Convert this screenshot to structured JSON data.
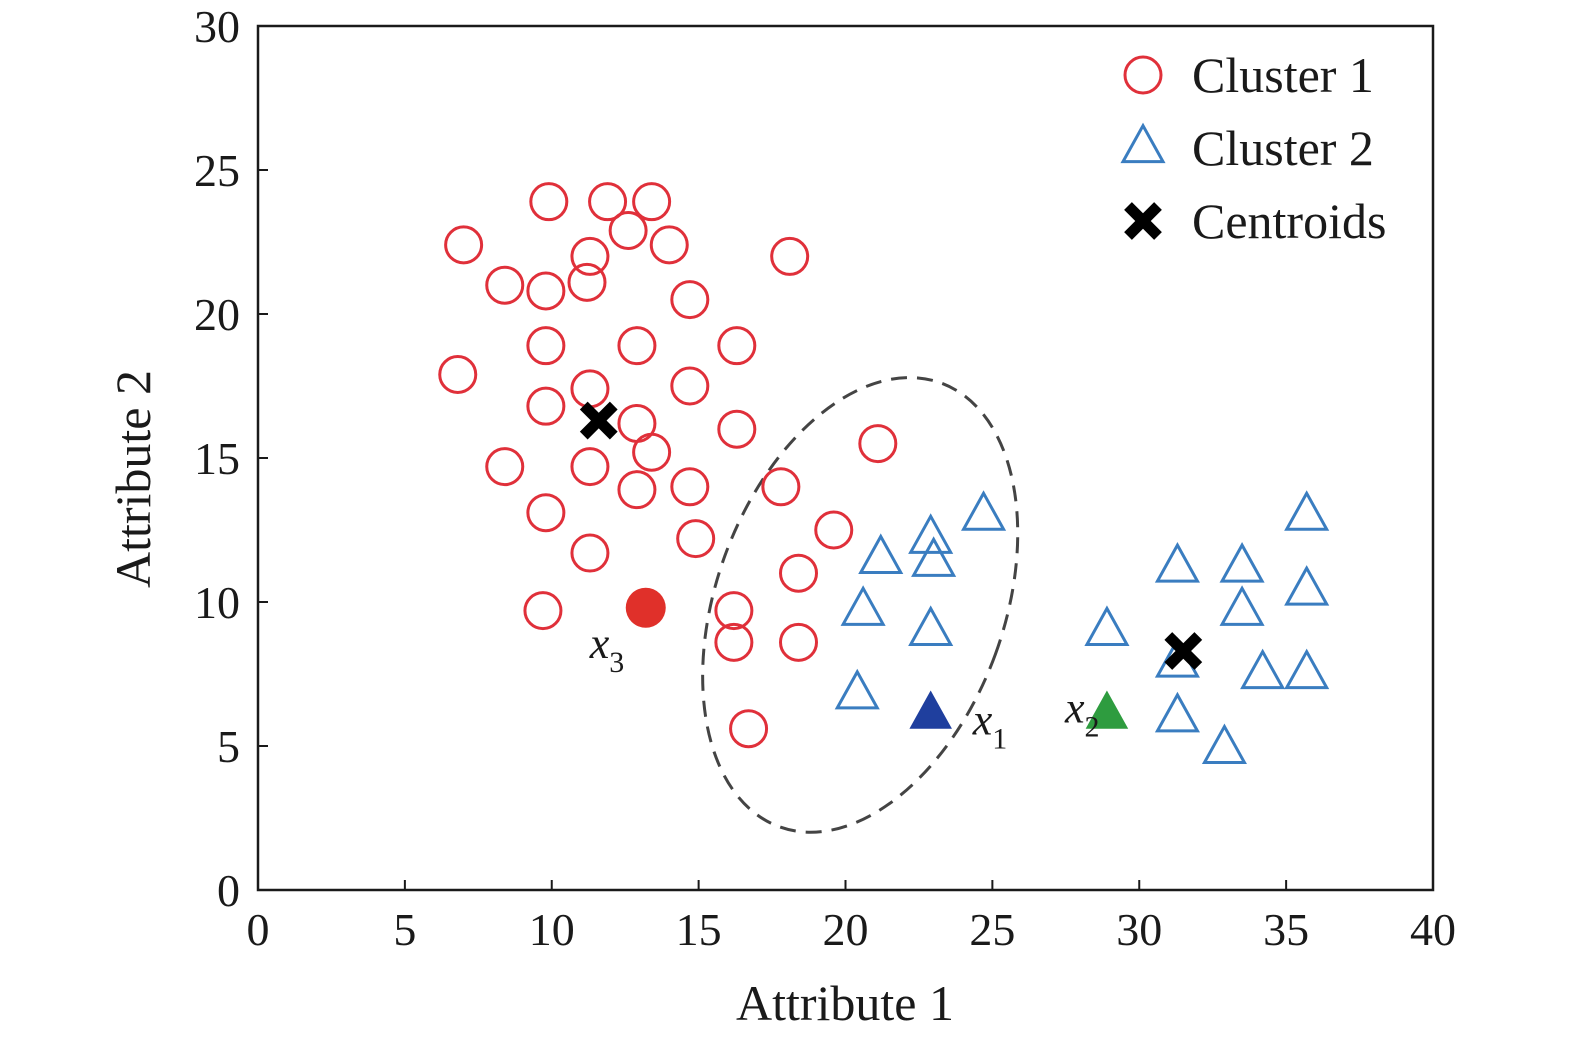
{
  "chart_data": {
    "type": "scatter",
    "xlabel": "Attribute 1",
    "ylabel": "Attribute 2",
    "xlim": [
      0,
      40
    ],
    "ylim": [
      0,
      30
    ],
    "x_ticks": [
      0,
      5,
      10,
      15,
      20,
      25,
      30,
      35,
      40
    ],
    "y_ticks": [
      0,
      5,
      10,
      15,
      20,
      25,
      30
    ],
    "grid": false,
    "legend_position": "top-right",
    "colors": {
      "cluster1": "#e0303a",
      "cluster2": "#3a7dc0",
      "centroid": "#000000",
      "x1_point": "#1f3f9e",
      "x2_point": "#2e9c3f",
      "x3_point": "#e0302a",
      "ellipse": "#444444"
    },
    "legend": [
      {
        "key": "cluster1",
        "label": "Cluster 1",
        "marker": "circle"
      },
      {
        "key": "cluster2",
        "label": "Cluster 2",
        "marker": "triangle"
      },
      {
        "key": "centroid",
        "label": "Centroids",
        "marker": "x"
      }
    ],
    "series": [
      {
        "name": "Cluster 1",
        "marker": "circle-open",
        "points": [
          [
            9.9,
            23.9
          ],
          [
            11.9,
            23.9
          ],
          [
            13.4,
            23.9
          ],
          [
            12.6,
            22.9
          ],
          [
            7.0,
            22.4
          ],
          [
            11.3,
            22.0
          ],
          [
            14.0,
            22.4
          ],
          [
            18.1,
            22.0
          ],
          [
            8.4,
            21.0
          ],
          [
            9.8,
            20.8
          ],
          [
            11.2,
            21.1
          ],
          [
            14.7,
            20.5
          ],
          [
            9.8,
            18.9
          ],
          [
            12.9,
            18.9
          ],
          [
            16.3,
            18.9
          ],
          [
            6.8,
            17.9
          ],
          [
            11.3,
            17.4
          ],
          [
            14.7,
            17.5
          ],
          [
            9.8,
            16.8
          ],
          [
            12.9,
            16.2
          ],
          [
            16.3,
            16.0
          ],
          [
            21.1,
            15.5
          ],
          [
            8.4,
            14.7
          ],
          [
            11.3,
            14.7
          ],
          [
            13.4,
            15.2
          ],
          [
            12.9,
            13.9
          ],
          [
            14.7,
            14.0
          ],
          [
            17.8,
            14.0
          ],
          [
            9.8,
            13.1
          ],
          [
            19.6,
            12.5
          ],
          [
            14.9,
            12.2
          ],
          [
            11.3,
            11.7
          ],
          [
            18.4,
            11.0
          ],
          [
            9.7,
            9.7
          ],
          [
            16.2,
            9.7
          ],
          [
            16.2,
            8.6
          ],
          [
            18.4,
            8.6
          ],
          [
            16.7,
            5.6
          ]
        ]
      },
      {
        "name": "Cluster 2",
        "marker": "triangle-open",
        "points": [
          [
            24.7,
            13.0
          ],
          [
            22.9,
            12.2
          ],
          [
            21.2,
            11.5
          ],
          [
            23.0,
            11.4
          ],
          [
            20.6,
            9.7
          ],
          [
            22.9,
            9.0
          ],
          [
            20.4,
            6.8
          ],
          [
            35.7,
            13.0
          ],
          [
            31.3,
            11.2
          ],
          [
            33.5,
            11.2
          ],
          [
            35.7,
            10.4
          ],
          [
            33.5,
            9.7
          ],
          [
            28.9,
            9.0
          ],
          [
            31.3,
            7.9
          ],
          [
            34.2,
            7.5
          ],
          [
            35.7,
            7.5
          ],
          [
            31.3,
            6.0
          ],
          [
            32.9,
            4.9
          ]
        ]
      }
    ],
    "centroids": [
      [
        11.6,
        16.3
      ],
      [
        31.5,
        8.3
      ]
    ],
    "highlighted_points": [
      {
        "label": "x",
        "subscript": "1",
        "x": 22.9,
        "y": 6.1,
        "marker": "triangle-filled",
        "color_key": "x1_point"
      },
      {
        "label": "x",
        "subscript": "2",
        "x": 28.9,
        "y": 6.1,
        "marker": "triangle-filled",
        "color_key": "x2_point"
      },
      {
        "label": "x",
        "subscript": "3",
        "x": 13.2,
        "y": 9.8,
        "marker": "circle-filled",
        "color_key": "x3_point"
      }
    ],
    "ellipse": {
      "cx": 20.5,
      "cy": 9.9,
      "rx": 4.9,
      "ry": 8.2,
      "rotation_deg": 20
    }
  }
}
